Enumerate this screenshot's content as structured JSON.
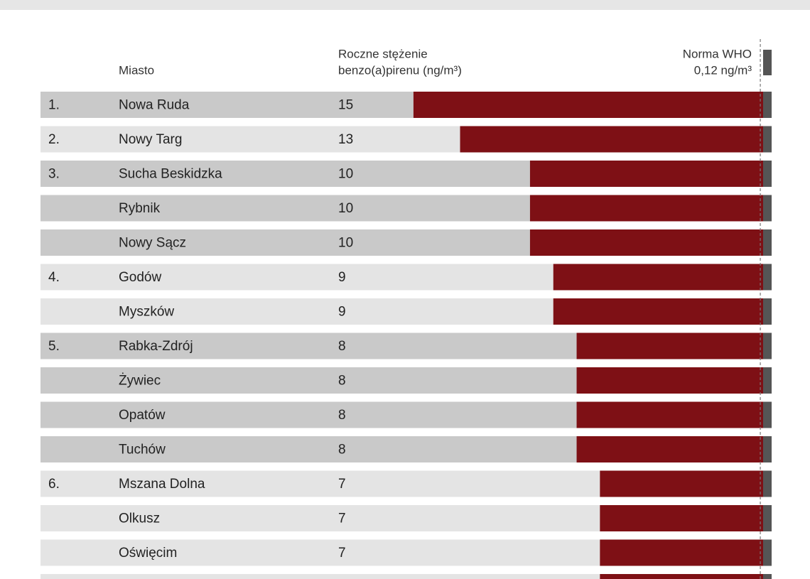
{
  "chart_data": {
    "type": "bar",
    "category_header": "Miasto",
    "value_header": [
      "Roczne stężenie",
      "benzo(a)pirenu (ng/m³)"
    ],
    "reference": {
      "name": "Norma WHO",
      "value": 0.12,
      "value_label": "0,12 ng/m³"
    },
    "ranks": [
      "1.",
      "2.",
      "3.",
      null,
      null,
      "4.",
      null,
      "5.",
      null,
      null,
      null,
      "6.",
      null,
      null,
      null
    ],
    "categories": [
      "Nowa Ruda",
      "Nowy Targ",
      "Sucha Beskidzka",
      "Rybnik",
      "Nowy Sącz",
      "Godów",
      "Myszków",
      "Rabka-Zdrój",
      "Żywiec",
      "Opatów",
      "Tuchów",
      "Mszana Dolna",
      "Olkusz",
      "Oświęcim",
      null
    ],
    "values": [
      15,
      13,
      10,
      10,
      10,
      9,
      9,
      8,
      8,
      8,
      8,
      7,
      7,
      7,
      7
    ],
    "color": "#7e1015",
    "xlim": [
      0,
      31
    ]
  }
}
